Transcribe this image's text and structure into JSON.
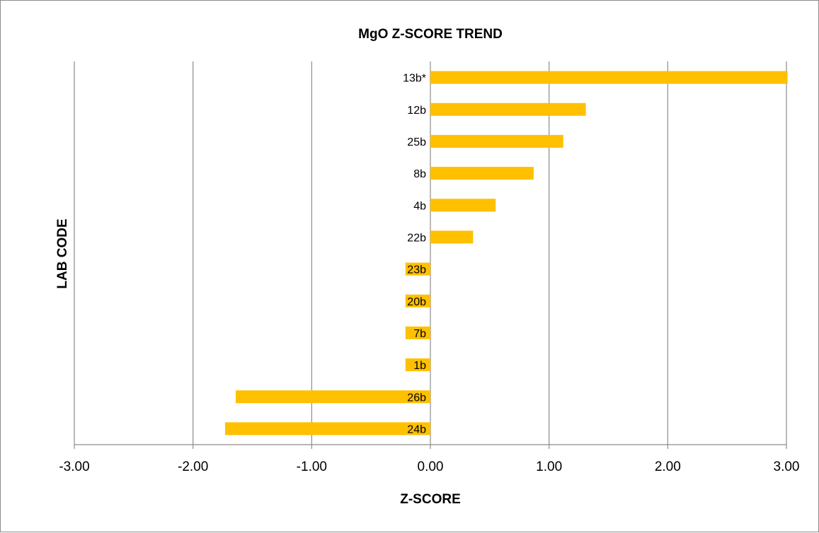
{
  "chart_data": {
    "type": "bar",
    "orientation": "horizontal",
    "title": "MgO Z-SCORE TREND",
    "xlabel": "Z-SCORE",
    "ylabel": "LAB CODE",
    "xlim": [
      -3,
      3
    ],
    "xticks": [
      -3,
      -2,
      -1,
      0,
      1,
      2,
      3
    ],
    "xtick_labels": [
      "-3.00",
      "-2.00",
      "-1.00",
      "0.00",
      "1.00",
      "2.00",
      "3.00"
    ],
    "grid": "vertical major gridlines",
    "bar_color": "#FFC000",
    "categories": [
      "13b*",
      "12b",
      "25b",
      "8b",
      "4b",
      "22b",
      "23b",
      "20b",
      "7b",
      "1b",
      "26b",
      "24b"
    ],
    "values": [
      3.01,
      1.31,
      1.12,
      0.87,
      0.55,
      0.36,
      -0.21,
      -0.21,
      -0.21,
      -0.21,
      -1.64,
      -1.73
    ]
  }
}
